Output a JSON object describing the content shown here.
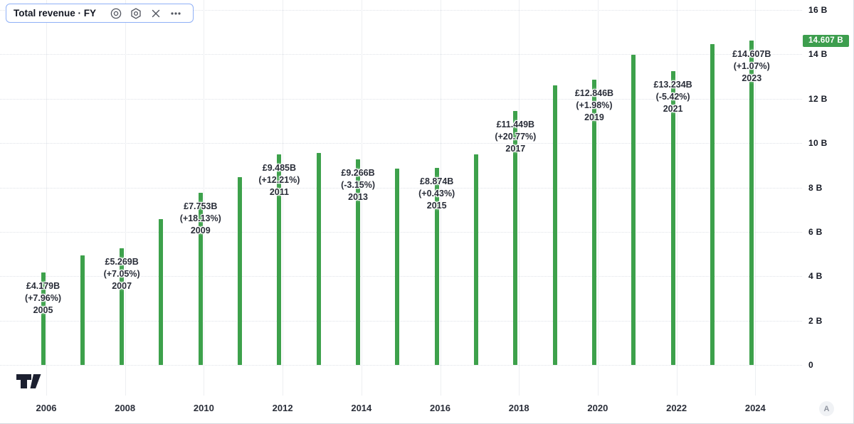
{
  "legend": {
    "title": "Total revenue · FY",
    "icons": [
      "eye-icon",
      "gear-icon",
      "close-icon",
      "more-icon"
    ]
  },
  "colors": {
    "bar_green": "#3da14b",
    "badge_green": "#3d9e4e",
    "annotation_text": "#2a2e39",
    "axis_text": "#131722",
    "legend_border": "#8fb0f7"
  },
  "price_axis": {
    "labels": [
      {
        "text": "16 B",
        "value": 16
      },
      {
        "text": "14 B",
        "value": 14
      },
      {
        "text": "12 B",
        "value": 12
      },
      {
        "text": "10 B",
        "value": 10
      },
      {
        "text": "8 B",
        "value": 8
      },
      {
        "text": "6 B",
        "value": 6
      },
      {
        "text": "4 B",
        "value": 4
      },
      {
        "text": "2 B",
        "value": 2
      },
      {
        "text": "0",
        "value": 0
      }
    ],
    "badge": {
      "text": "14.607 B",
      "value": 14.607
    }
  },
  "time_axis": {
    "labels": [
      "2006",
      "2008",
      "2010",
      "2012",
      "2014",
      "2016",
      "2018",
      "2020",
      "2022",
      "2024"
    ]
  },
  "toolbar": {
    "a_label": "A"
  },
  "chart_data": {
    "type": "bar",
    "title": "Total revenue · FY",
    "currency": "£",
    "unit": "B",
    "ylim": [
      0,
      16
    ],
    "grid": true,
    "x": [
      2005,
      2006,
      2007,
      2008,
      2009,
      2010,
      2011,
      2012,
      2013,
      2014,
      2015,
      2016,
      2017,
      2018,
      2019,
      2020,
      2021,
      2022,
      2023
    ],
    "values": [
      4.179,
      4.922,
      5.269,
      6.563,
      7.753,
      8.453,
      9.485,
      9.567,
      9.266,
      8.836,
      8.874,
      9.48,
      11.449,
      12.597,
      12.846,
      13.992,
      13.234,
      14.452,
      14.607
    ],
    "last_value": 14.607,
    "annotations": [
      {
        "year": "2005",
        "value_label": "£4.179B",
        "pct_label": "(+7.96%)",
        "value": 4.179
      },
      {
        "year": "2007",
        "value_label": "£5.269B",
        "pct_label": "(+7.05%)",
        "value": 5.269
      },
      {
        "year": "2009",
        "value_label": "£7.753B",
        "pct_label": "(+18.13%)",
        "value": 7.753
      },
      {
        "year": "2011",
        "value_label": "£9.485B",
        "pct_label": "(+12.21%)",
        "value": 9.485
      },
      {
        "year": "2013",
        "value_label": "£9.266B",
        "pct_label": "(-3.15%)",
        "value": 9.266
      },
      {
        "year": "2015",
        "value_label": "£8.874B",
        "pct_label": "(+0.43%)",
        "value": 8.874
      },
      {
        "year": "2017",
        "value_label": "£11.449B",
        "pct_label": "(+20.77%)",
        "value": 11.449
      },
      {
        "year": "2019",
        "value_label": "£12.846B",
        "pct_label": "(+1.98%)",
        "value": 12.846
      },
      {
        "year": "2021",
        "value_label": "£13.234B",
        "pct_label": "(-5.42%)",
        "value": 13.234
      },
      {
        "year": "2023",
        "value_label": "£14.607B",
        "pct_label": "(+1.07%)",
        "value": 14.607
      }
    ]
  }
}
